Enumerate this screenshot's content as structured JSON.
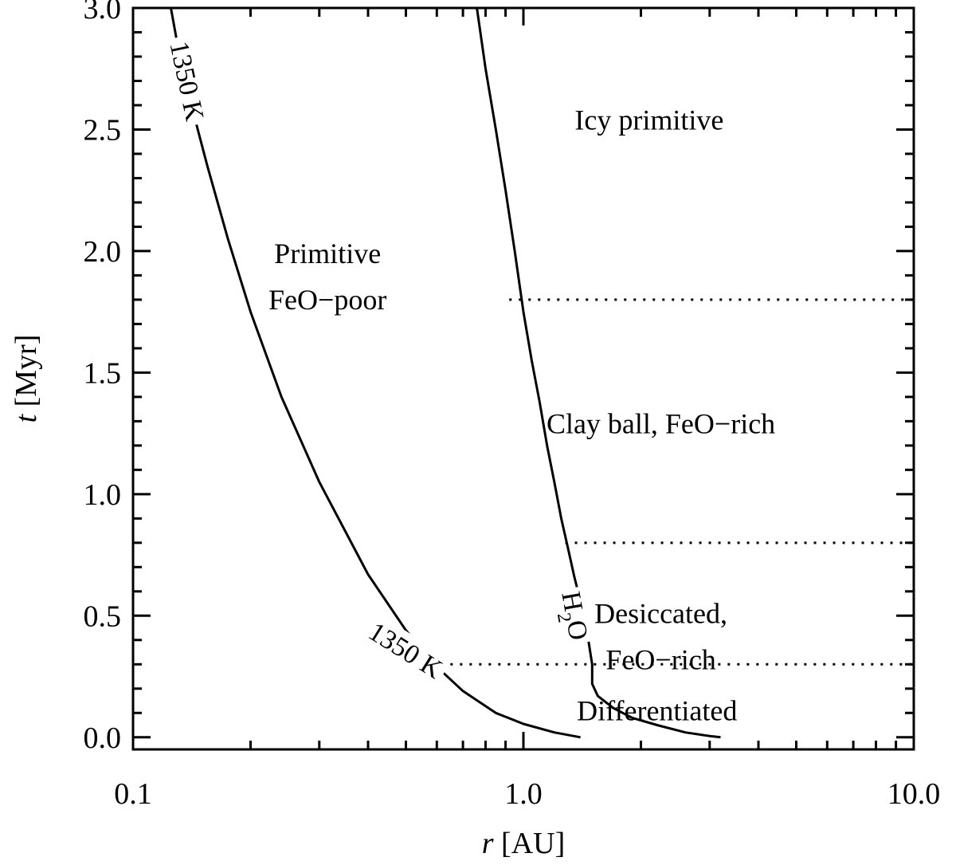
{
  "chart_data": {
    "type": "line",
    "title": "",
    "xlabel_var": "r",
    "xlabel_unit": " [AU]",
    "ylabel_var": "t",
    "ylabel_unit": " [Myr]",
    "xscale": "log",
    "xlim": [
      0.1,
      10.0
    ],
    "ylim": [
      -0.05,
      3.0
    ],
    "grid": false,
    "x_ticks": [
      0.1,
      1.0,
      10.0
    ],
    "x_tick_labels": [
      "0.1",
      "1.0",
      "10.0"
    ],
    "y_ticks": [
      0.0,
      0.5,
      1.0,
      1.5,
      2.0,
      2.5,
      3.0
    ],
    "y_tick_labels": [
      "0.0",
      "0.5",
      "1.0",
      "1.5",
      "2.0",
      "2.5",
      "3.0"
    ],
    "series": [
      {
        "key": "t1350",
        "color": "#000000",
        "style": "solid",
        "x": [
          0.125,
          0.13,
          0.14,
          0.155,
          0.175,
          0.2,
          0.24,
          0.3,
          0.4,
          0.5,
          0.6,
          0.7,
          0.85,
          1.0,
          1.2,
          1.4
        ],
        "y": [
          3.0,
          2.85,
          2.62,
          2.35,
          2.05,
          1.75,
          1.4,
          1.05,
          0.67,
          0.44,
          0.29,
          0.19,
          0.1,
          0.055,
          0.02,
          0.0
        ]
      },
      {
        "key": "h2o",
        "color": "#000000",
        "style": "solid",
        "x": [
          0.76,
          0.8,
          0.85,
          0.9,
          0.95,
          1.0,
          1.05,
          1.1,
          1.15,
          1.2,
          1.25,
          1.3,
          1.35,
          1.4,
          1.45,
          1.48,
          1.5,
          1.5,
          1.55,
          1.7,
          1.9,
          2.2,
          2.6,
          3.0,
          3.2
        ],
        "y": [
          3.0,
          2.75,
          2.5,
          2.25,
          2.0,
          1.75,
          1.55,
          1.38,
          1.2,
          1.05,
          0.9,
          0.78,
          0.66,
          0.56,
          0.45,
          0.36,
          0.3,
          0.22,
          0.17,
          0.12,
          0.08,
          0.05,
          0.02,
          0.005,
          0.0
        ]
      }
    ],
    "hlines": [
      {
        "y": 1.8,
        "x_from": 0.92,
        "x_to": 10.0,
        "style": "dotted"
      },
      {
        "y": 0.8,
        "x_from": 1.28,
        "x_to": 10.0,
        "style": "dotted"
      },
      {
        "y": 0.3,
        "x_from": 0.65,
        "x_to": 10.0,
        "style": "dotted"
      }
    ],
    "annotations": [
      {
        "key": "icy_primitive",
        "lines": [
          "Icy primitive"
        ],
        "x": 2.1,
        "y": 2.5
      },
      {
        "key": "primitive_feo_poor",
        "lines": [
          "Primitive",
          "FeO−poor"
        ],
        "x": 0.315,
        "y": 1.95
      },
      {
        "key": "clay_ball",
        "lines": [
          "Clay ball, FeO−rich"
        ],
        "x": 2.25,
        "y": 1.25
      },
      {
        "key": "desiccated",
        "lines": [
          "Desiccated,",
          "FeO−rich"
        ],
        "x": 2.25,
        "y": 0.47
      },
      {
        "key": "differentiated",
        "lines": [
          "Differentiated"
        ],
        "x": 2.2,
        "y": 0.07
      }
    ],
    "curve_labels": [
      {
        "key": "lbl_1350_upper",
        "text": "1350 K",
        "x": 0.138,
        "y": 2.7,
        "rotate": 78
      },
      {
        "key": "lbl_1350_lower",
        "text": "1350 K",
        "x": 0.5,
        "y": 0.36,
        "rotate": 32
      },
      {
        "key": "lbl_h2o",
        "text_main": "H",
        "text_sub": "2",
        "text_tail": "O",
        "x": 1.36,
        "y": 0.5,
        "rotate": 80
      }
    ]
  }
}
